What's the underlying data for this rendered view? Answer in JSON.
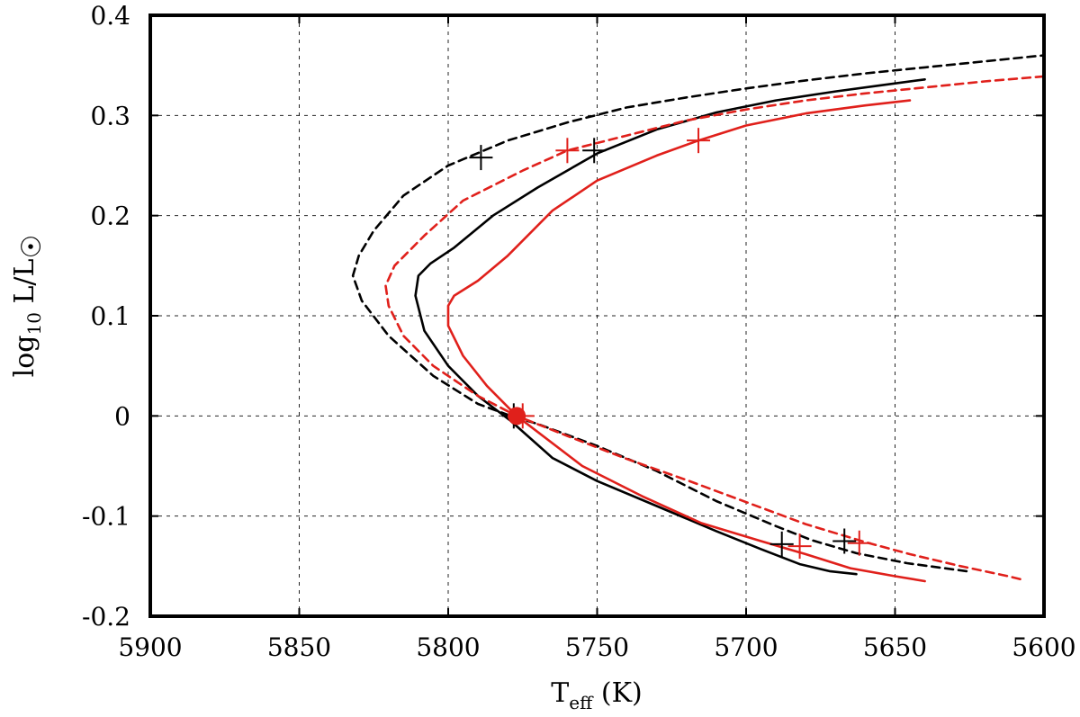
{
  "chart_data": {
    "type": "line",
    "title": "",
    "xlabel": {
      "main": "T",
      "sub": "eff",
      "suffix": " (K)"
    },
    "ylabel": {
      "prefix": "log",
      "sub": "10",
      "suffix": " L/L",
      "sym": "☉"
    },
    "xlim": [
      5900,
      5600
    ],
    "ylim": [
      -0.2,
      0.4
    ],
    "x_reversed": true,
    "grid": true,
    "xticks": [
      "5900",
      "5850",
      "5800",
      "5750",
      "5700",
      "5650",
      "5600"
    ],
    "yticks": [
      "-0.2",
      "-0.1",
      "0",
      "0.1",
      "0.2",
      "0.3",
      "0.4"
    ],
    "colors": {
      "black": "#000000",
      "red": "#e0201b"
    },
    "series": [
      {
        "color": "black",
        "dash": "dashed",
        "x": [
          5626,
          5646,
          5663,
          5678,
          5690,
          5710,
          5730,
          5750,
          5770,
          5779,
          5790,
          5805,
          5820,
          5829,
          5832,
          5830,
          5825,
          5815,
          5800,
          5780,
          5760,
          5740,
          5720,
          5700,
          5680,
          5660,
          5640,
          5620,
          5600
        ],
        "y": [
          -0.155,
          -0.147,
          -0.137,
          -0.124,
          -0.11,
          -0.085,
          -0.055,
          -0.03,
          -0.008,
          0,
          0.012,
          0.04,
          0.08,
          0.115,
          0.14,
          0.16,
          0.185,
          0.22,
          0.25,
          0.275,
          0.293,
          0.308,
          0.318,
          0.327,
          0.335,
          0.342,
          0.348,
          0.354,
          0.36
        ]
      },
      {
        "color": "black",
        "dash": "solid",
        "x": [
          5663,
          5672,
          5682,
          5695,
          5710,
          5730,
          5750,
          5765,
          5779,
          5790,
          5800,
          5808,
          5811,
          5810,
          5806,
          5798,
          5785,
          5770,
          5750,
          5730,
          5710,
          5690,
          5670,
          5655,
          5640
        ],
        "y": [
          -0.158,
          -0.155,
          -0.148,
          -0.133,
          -0.115,
          -0.09,
          -0.065,
          -0.042,
          -0.005,
          0.02,
          0.05,
          0.085,
          0.12,
          0.14,
          0.152,
          0.168,
          0.2,
          0.228,
          0.262,
          0.286,
          0.303,
          0.315,
          0.324,
          0.33,
          0.336
        ]
      },
      {
        "color": "red",
        "dash": "dashed",
        "x": [
          5608,
          5612,
          5628,
          5645,
          5660,
          5680,
          5700,
          5720,
          5740,
          5760,
          5777,
          5790,
          5805,
          5815,
          5820,
          5821,
          5818,
          5808,
          5795,
          5775,
          5760,
          5740,
          5720,
          5700,
          5680,
          5660,
          5640,
          5620,
          5600
        ],
        "y": [
          -0.163,
          -0.16,
          -0.15,
          -0.138,
          -0.126,
          -0.108,
          -0.086,
          -0.064,
          -0.043,
          -0.02,
          0,
          0.02,
          0.05,
          0.08,
          0.11,
          0.13,
          0.15,
          0.18,
          0.215,
          0.245,
          0.265,
          0.28,
          0.295,
          0.306,
          0.315,
          0.322,
          0.328,
          0.334,
          0.339
        ]
      },
      {
        "color": "red",
        "dash": "solid",
        "x": [
          5640,
          5650,
          5665,
          5680,
          5695,
          5715,
          5735,
          5755,
          5777,
          5787,
          5795,
          5800,
          5800,
          5798,
          5790,
          5780,
          5765,
          5750,
          5730,
          5716,
          5700,
          5680,
          5660,
          5645
        ],
        "y": [
          -0.165,
          -0.16,
          -0.152,
          -0.138,
          -0.125,
          -0.107,
          -0.08,
          -0.05,
          0,
          0.03,
          0.06,
          0.09,
          0.11,
          0.12,
          0.135,
          0.16,
          0.205,
          0.235,
          0.26,
          0.275,
          0.29,
          0.302,
          0.31,
          0.315
        ]
      }
    ],
    "markers": [
      {
        "color": "black",
        "x": 5789,
        "y": 0.258
      },
      {
        "color": "black",
        "x": 5751,
        "y": 0.265
      },
      {
        "color": "black",
        "x": 5778,
        "y": 0
      },
      {
        "color": "black",
        "x": 5688,
        "y": -0.128
      },
      {
        "color": "black",
        "x": 5667,
        "y": -0.125
      },
      {
        "color": "red",
        "x": 5760,
        "y": 0.265
      },
      {
        "color": "red",
        "x": 5716,
        "y": 0.275
      },
      {
        "color": "red",
        "x": 5775,
        "y": 0
      },
      {
        "color": "red",
        "x": 5682,
        "y": -0.13
      },
      {
        "color": "red",
        "x": 5662,
        "y": -0.127
      }
    ],
    "points": [
      {
        "color": "red",
        "x": 5777,
        "y": 0
      }
    ]
  }
}
